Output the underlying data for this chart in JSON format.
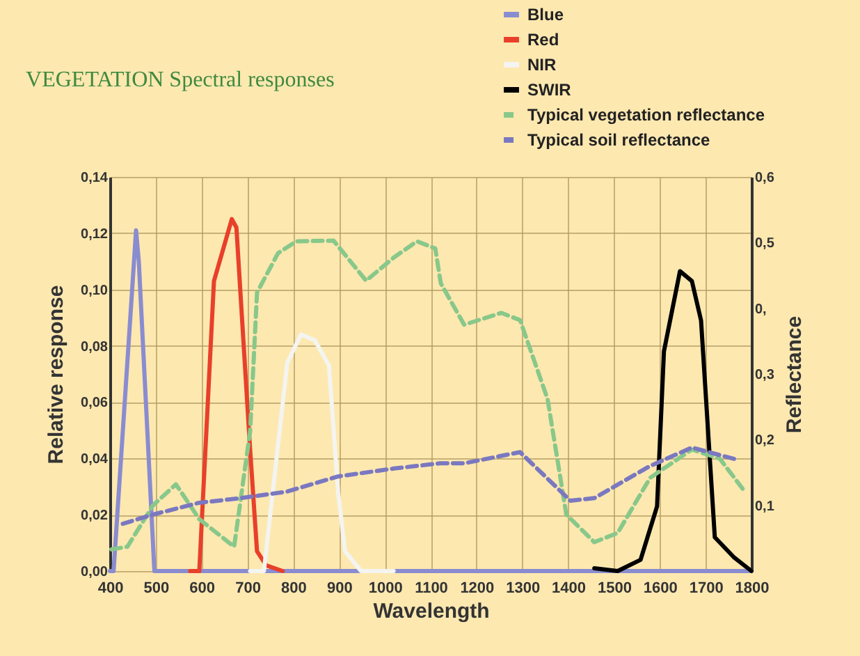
{
  "chart_data": {
    "type": "line",
    "title": "VEGETATION Spectral responses",
    "xlabel": "Wavelength",
    "ylabel": "Relative response",
    "y2label": "Reflectance",
    "xlim": [
      400,
      1800
    ],
    "xticks": [
      400,
      500,
      600,
      700,
      800,
      900,
      1000,
      1100,
      1200,
      1300,
      1400,
      1500,
      1600,
      1700,
      1800
    ],
    "ylim": [
      0,
      0.14
    ],
    "yticks": [
      {
        "value": 0,
        "label": "0,00"
      },
      {
        "value": 0.02,
        "label": "0,02"
      },
      {
        "value": 0.04,
        "label": "0,04"
      },
      {
        "value": 0.06,
        "label": "0,06"
      },
      {
        "value": 0.08,
        "label": "0,08"
      },
      {
        "value": 0.1,
        "label": "0,10"
      },
      {
        "value": 0.12,
        "label": "0,12"
      },
      {
        "value": 0.14,
        "label": "0,14"
      }
    ],
    "y2lim": [
      0,
      0.6
    ],
    "y2ticks": [
      {
        "value": 0.1,
        "label": "0,1"
      },
      {
        "value": 0.2,
        "label": "0,2"
      },
      {
        "value": 0.3,
        "label": "0,3"
      },
      {
        "value": 0.4,
        "label": "0,"
      },
      {
        "value": 0.5,
        "label": "0,5"
      },
      {
        "value": 0.6,
        "label": "0,6"
      }
    ],
    "grid": true,
    "legend": "top right",
    "series": [
      {
        "name": "Blue",
        "color": "#8a8cd0",
        "line_style": "solid",
        "x": [
          400,
          408,
          457,
          463,
          497,
          1800
        ],
        "values": [
          0,
          0,
          0.121,
          0.11,
          0,
          0
        ]
      },
      {
        "name": "Red",
        "color": "#e8402a",
        "line_style": "solid",
        "x": [
          575,
          595,
          627,
          666,
          676,
          706,
          721,
          741,
          777
        ],
        "values": [
          0,
          0,
          0.103,
          0.125,
          0.122,
          0.043,
          0.007,
          0.002,
          0
        ]
      },
      {
        "name": "NIR",
        "color": "#f4f4f0",
        "line_style": "solid",
        "x": [
          706,
          736,
          767,
          787,
          817,
          847,
          878,
          898,
          913,
          948,
          1019
        ],
        "values": [
          0,
          0,
          0.045,
          0.074,
          0.084,
          0.082,
          0.073,
          0.028,
          0.007,
          0,
          0
        ]
      },
      {
        "name": "SWIR",
        "color": "#000000",
        "line_style": "solid",
        "x": [
          1457,
          1508,
          1558,
          1594,
          1609,
          1644,
          1670,
          1690,
          1720,
          1761,
          1800
        ],
        "values": [
          0.001,
          0,
          0.004,
          0.023,
          0.078,
          0.1065,
          0.103,
          0.089,
          0.012,
          0.005,
          0
        ]
      },
      {
        "name": "Typical vegetation reflectance",
        "color": "#88c88a",
        "line_style": "dashed",
        "axis": "y2",
        "x": [
          403,
          438,
          494,
          544,
          595,
          671,
          706,
          721,
          767,
          807,
          888,
          959,
          1019,
          1070,
          1110,
          1122,
          1173,
          1254,
          1295,
          1355,
          1396,
          1457,
          1508,
          1579,
          1670,
          1731,
          1781
        ],
        "values": [
          0.033,
          0.037,
          0.1,
          0.132,
          0.079,
          0.037,
          0.213,
          0.424,
          0.484,
          0.502,
          0.503,
          0.442,
          0.477,
          0.502,
          0.491,
          0.438,
          0.375,
          0.393,
          0.382,
          0.262,
          0.086,
          0.044,
          0.058,
          0.142,
          0.185,
          0.171,
          0.125
        ]
      },
      {
        "name": "Typical soil reflectance",
        "color": "#7a78c0",
        "line_style": "dashed",
        "axis": "y2",
        "x": [
          428,
          494,
          595,
          686,
          787,
          898,
          1019,
          1120,
          1173,
          1295,
          1405,
          1457,
          1579,
          1670,
          1771
        ],
        "values": [
          0.072,
          0.086,
          0.104,
          0.111,
          0.121,
          0.144,
          0.156,
          0.164,
          0.164,
          0.181,
          0.107,
          0.111,
          0.16,
          0.188,
          0.169
        ]
      }
    ]
  }
}
